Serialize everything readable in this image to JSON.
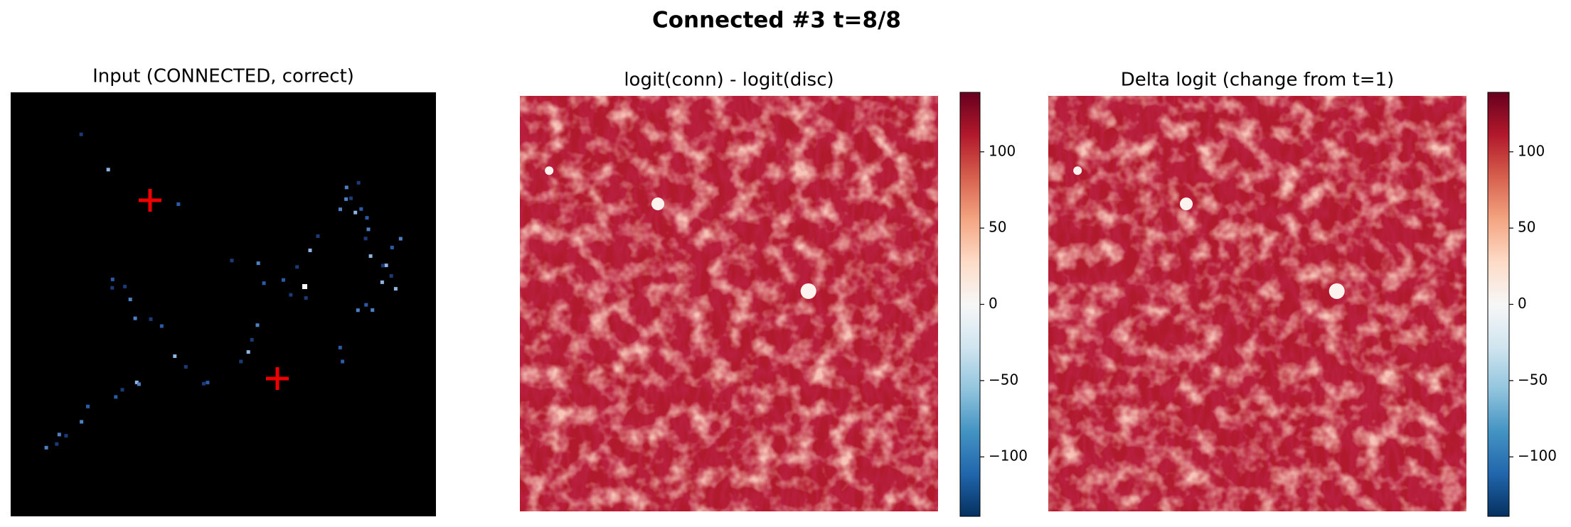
{
  "title": "Connected #3  t=8/8",
  "chart_data": [
    {
      "type": "image",
      "title": "Input (CONNECTED, correct)"
    },
    {
      "type": "heatmap",
      "title": "logit(conn) - logit(disc)",
      "clim": [
        -139,
        139
      ],
      "cticks": [
        {
          "value": -100,
          "label": "−100"
        },
        {
          "value": -50,
          "label": "−50"
        },
        0,
        50,
        100
      ]
    },
    {
      "type": "heatmap",
      "title": "Delta logit (change from t=1)",
      "clim": [
        -139,
        139
      ],
      "cticks": [
        {
          "value": -100,
          "label": "−100"
        },
        {
          "value": -50,
          "label": "−50"
        },
        0,
        50,
        100
      ]
    }
  ]
}
